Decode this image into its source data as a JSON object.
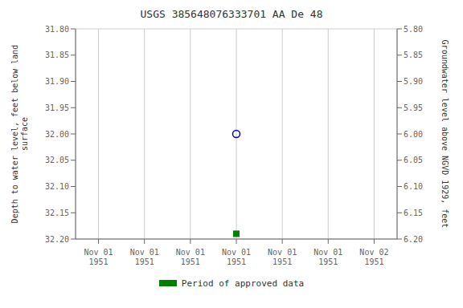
{
  "chart_data": {
    "type": "scatter",
    "title": "USGS 385648076333701 AA De  48",
    "ylabel": "Depth to water level, feet below land\nsurface",
    "y2label": "Groundwater level above NGVD 1929, feet",
    "categories": [
      "Nov 01\n1951",
      "Nov 01\n1951",
      "Nov 01\n1951",
      "Nov 01\n1951",
      "Nov 01\n1951",
      "Nov 01\n1951",
      "Nov 02\n1951"
    ],
    "series": [
      {
        "color": "#0000cc",
        "marker": "circle",
        "values": [
          null,
          null,
          null,
          32.0,
          null,
          null,
          null
        ]
      },
      {
        "name": "Period of approved data",
        "color": "#008000",
        "marker": "square",
        "values": [
          null,
          null,
          null,
          32.19,
          null,
          null,
          null
        ]
      }
    ],
    "ylim": [
      32.2,
      31.8
    ],
    "yticks": [
      {
        "value": 31.8,
        "label": "31.80"
      },
      {
        "value": 31.85,
        "label": "31.85"
      },
      {
        "value": 31.9,
        "label": "31.90"
      },
      {
        "value": 31.95,
        "label": "31.95"
      },
      {
        "value": 32.0,
        "label": "32.00"
      },
      {
        "value": 32.05,
        "label": "32.05"
      },
      {
        "value": 32.1,
        "label": "32.10"
      },
      {
        "value": 32.15,
        "label": "32.15"
      },
      {
        "value": 32.2,
        "label": "32.20"
      }
    ],
    "y2lim": [
      6.2,
      5.8
    ],
    "y2ticks": [
      {
        "value": 5.8,
        "label": "5.80"
      },
      {
        "value": 5.85,
        "label": "5.85"
      },
      {
        "value": 5.9,
        "label": "5.90"
      },
      {
        "value": 5.95,
        "label": "5.95"
      },
      {
        "value": 6.0,
        "label": "6.00"
      },
      {
        "value": 6.05,
        "label": "6.05"
      },
      {
        "value": 6.1,
        "label": "6.10"
      },
      {
        "value": 6.15,
        "label": "6.15"
      },
      {
        "value": 6.2,
        "label": "6.20"
      }
    ],
    "grid": true,
    "legend": "bottom"
  }
}
